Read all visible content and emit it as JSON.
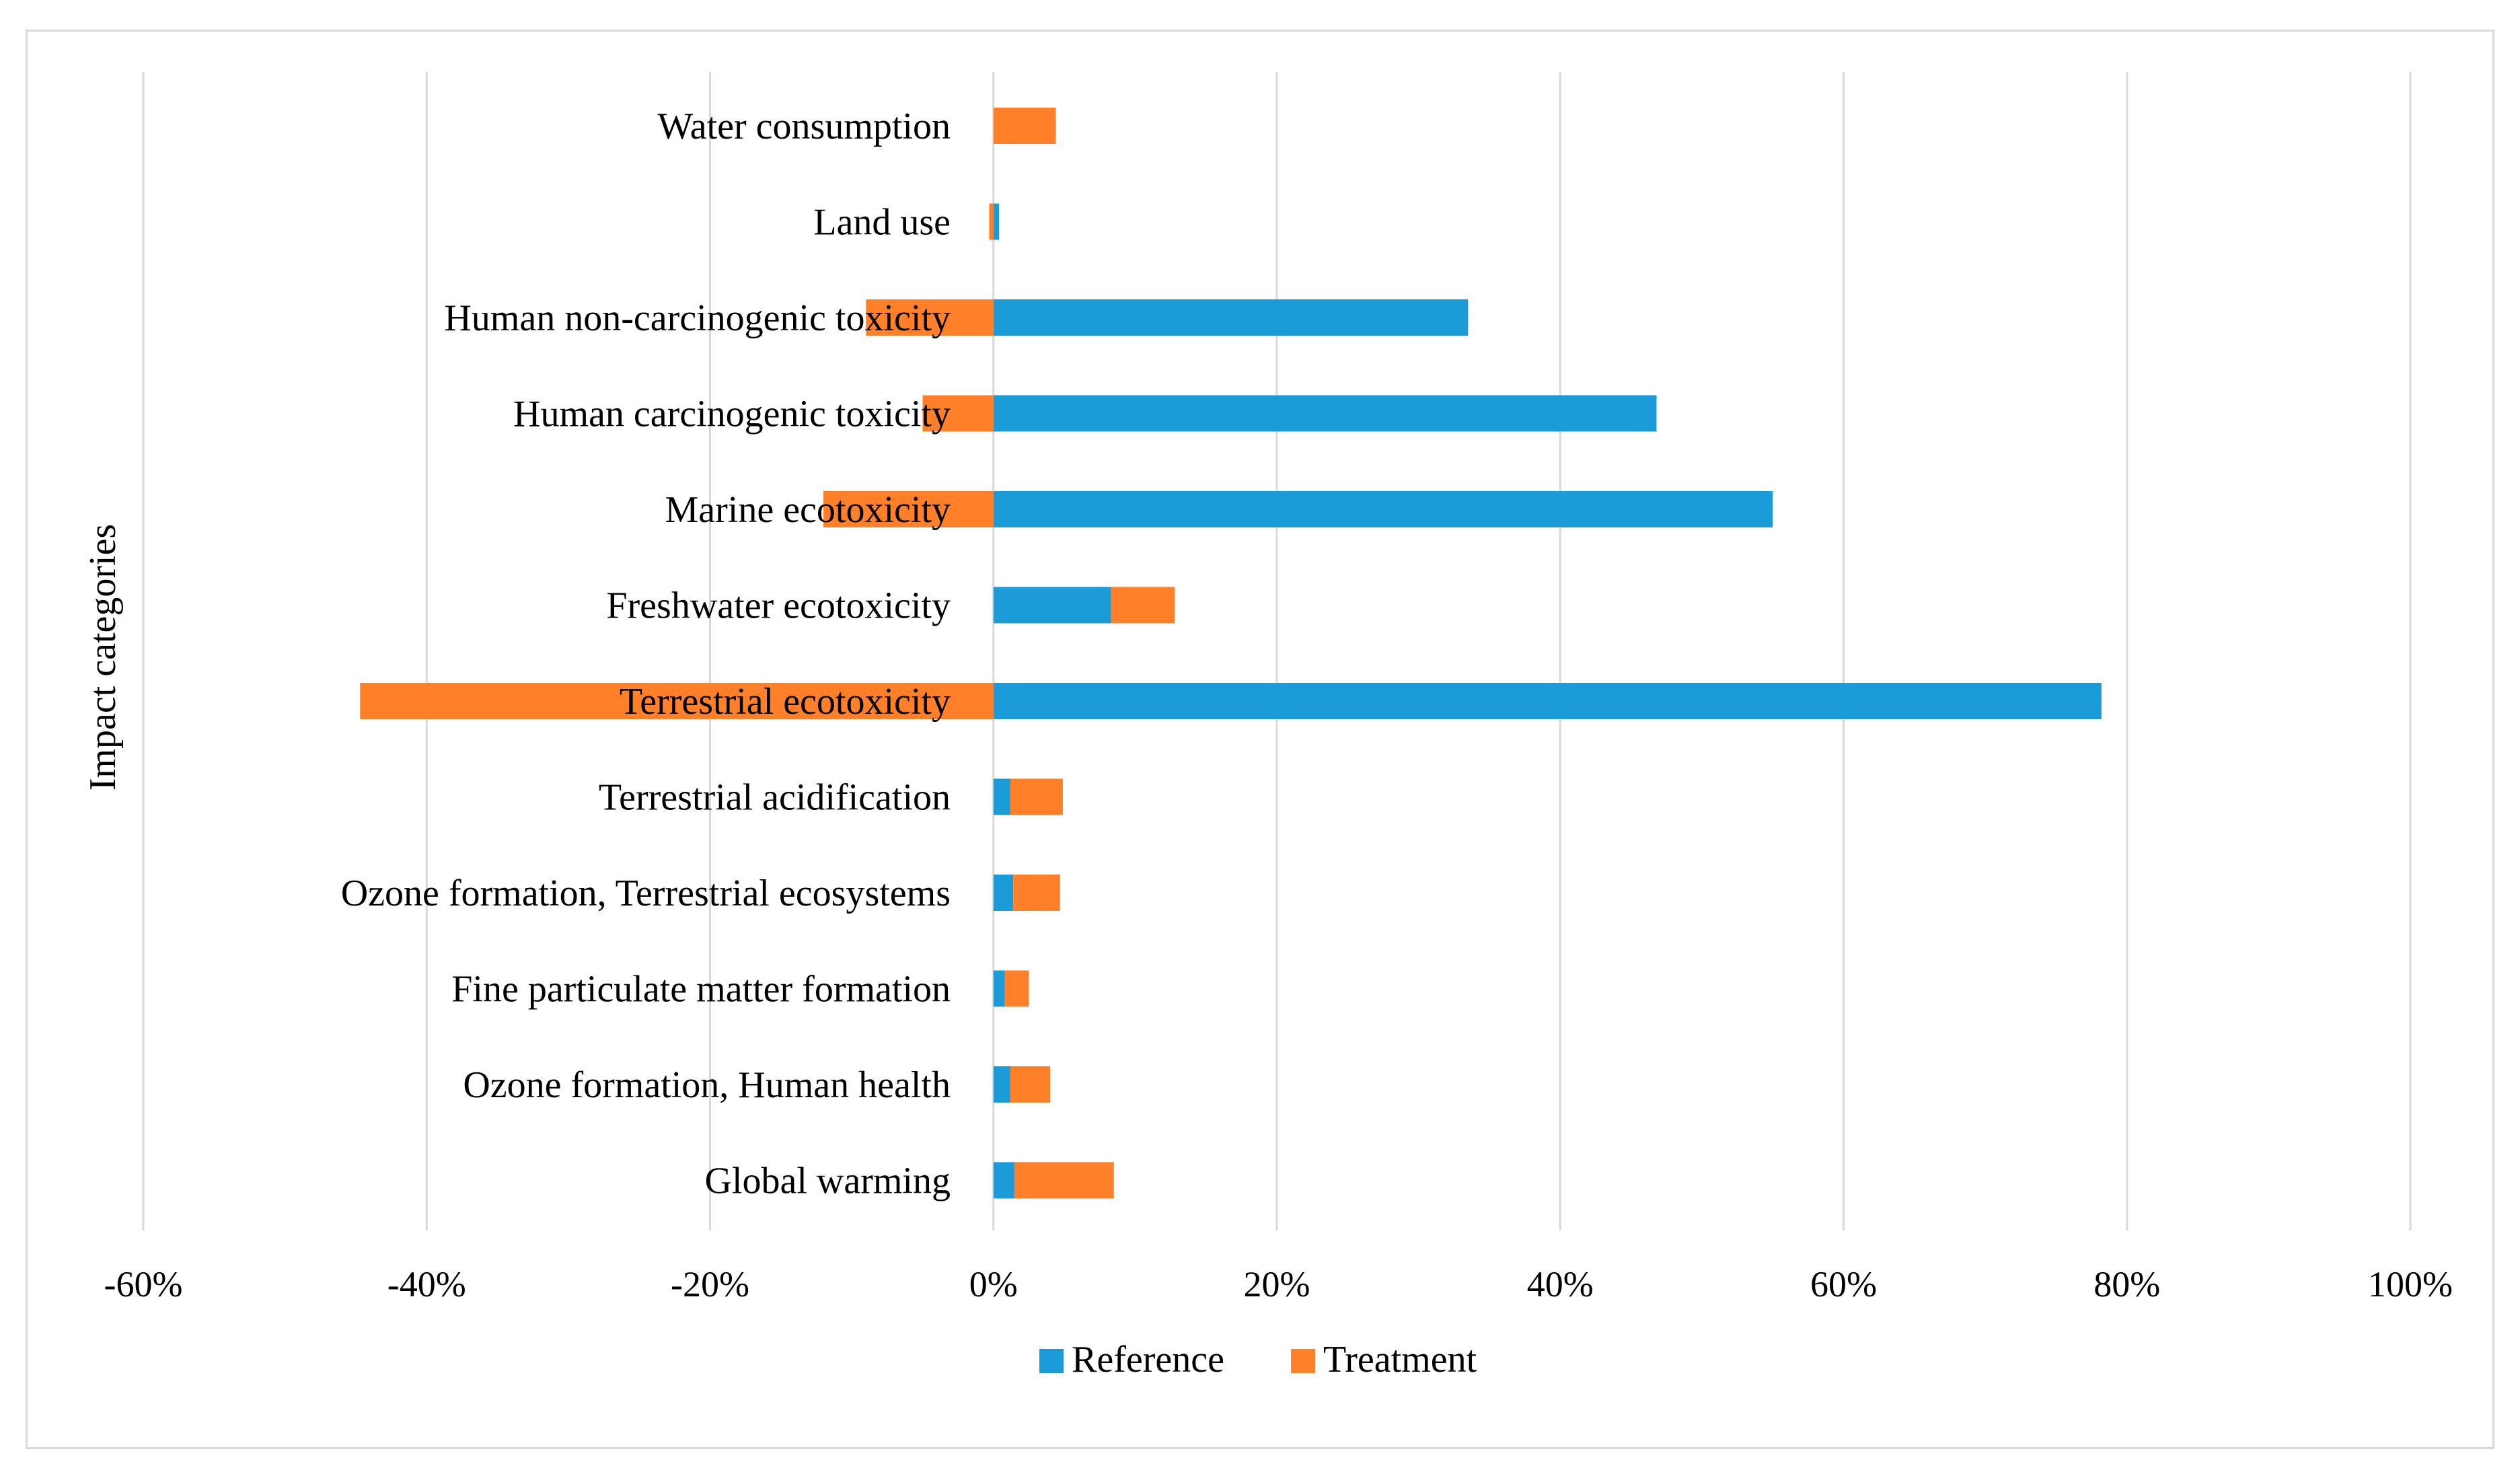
{
  "chart_data": {
    "type": "bar",
    "orientation": "horizontal",
    "stacked": true,
    "title": "",
    "xlabel": "",
    "ylabel": "Impact categories",
    "xlim": [
      -60,
      100
    ],
    "x_ticks": [
      -60,
      -40,
      -20,
      0,
      20,
      40,
      60,
      80,
      100
    ],
    "x_tick_labels": [
      "-60%",
      "-40%",
      "-20%",
      "0%",
      "20%",
      "40%",
      "60%",
      "80%",
      "100%"
    ],
    "grid": true,
    "legend_position": "bottom",
    "categories": [
      "Water consumption",
      "Land use",
      "Human non-carcinogenic toxicity",
      "Human carcinogenic toxicity",
      "Marine ecotoxicity",
      "Freshwater ecotoxicity",
      "Terrestrial ecotoxicity",
      "Terrestrial acidification",
      "Ozone formation, Terrestrial ecosystems",
      "Fine particulate matter formation",
      "Ozone formation, Human health",
      "Global warming"
    ],
    "series": [
      {
        "name": "Reference",
        "color": "#1b9bd7",
        "values": [
          0,
          0.4,
          33.5,
          46.8,
          55.0,
          8.3,
          78.2,
          1.2,
          1.4,
          0.8,
          1.2,
          1.5
        ]
      },
      {
        "name": "Treatment",
        "color": "#ff8028",
        "values": [
          4.4,
          -0.3,
          -9.0,
          -5.0,
          -12.0,
          4.5,
          -44.7,
          3.7,
          3.3,
          1.7,
          2.8,
          7.0
        ]
      }
    ]
  }
}
